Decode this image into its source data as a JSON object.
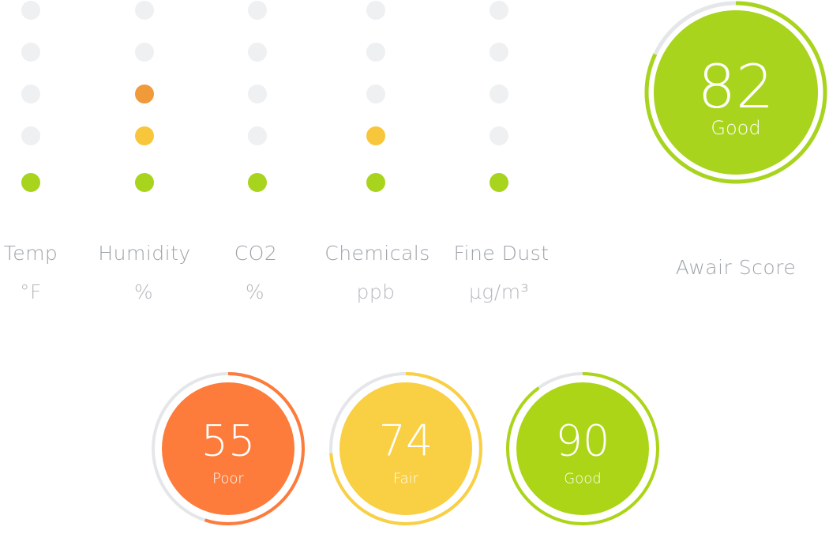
{
  "colors": {
    "off": "#eef0f2",
    "good": "#a8d41e",
    "fair": "#f8c63a",
    "poor": "#f09a3a",
    "poor_badge": "#fd7b3b",
    "fair_badge": "#f9cf43",
    "good_badge": "#acd518",
    "track": "#e4e6e9"
  },
  "sensors": [
    {
      "name": "Temp",
      "unit": "°F",
      "level": 1,
      "level_colors": [
        "good"
      ]
    },
    {
      "name": "Humidity",
      "unit": "%",
      "level": 3,
      "level_colors": [
        "good",
        "fair",
        "poor"
      ]
    },
    {
      "name": "CO2",
      "unit": "%",
      "level": 1,
      "level_colors": [
        "good"
      ]
    },
    {
      "name": "Chemicals",
      "unit": "ppb",
      "level": 2,
      "level_colors": [
        "good",
        "fair"
      ]
    },
    {
      "name": "Fine Dust",
      "unit": "µg/m³",
      "level": 1,
      "level_colors": [
        "good"
      ]
    }
  ],
  "awair": {
    "score": "82",
    "rating": "Good",
    "label": "Awair Score",
    "progress": 0.82,
    "color": "#a8d41e"
  },
  "badges": [
    {
      "score": "55",
      "rating": "Poor",
      "progress": 0.55,
      "color": "#fd7b3b"
    },
    {
      "score": "74",
      "rating": "Fair",
      "progress": 0.74,
      "color": "#f9cf43"
    },
    {
      "score": "90",
      "rating": "Good",
      "progress": 0.9,
      "color": "#acd518"
    }
  ]
}
